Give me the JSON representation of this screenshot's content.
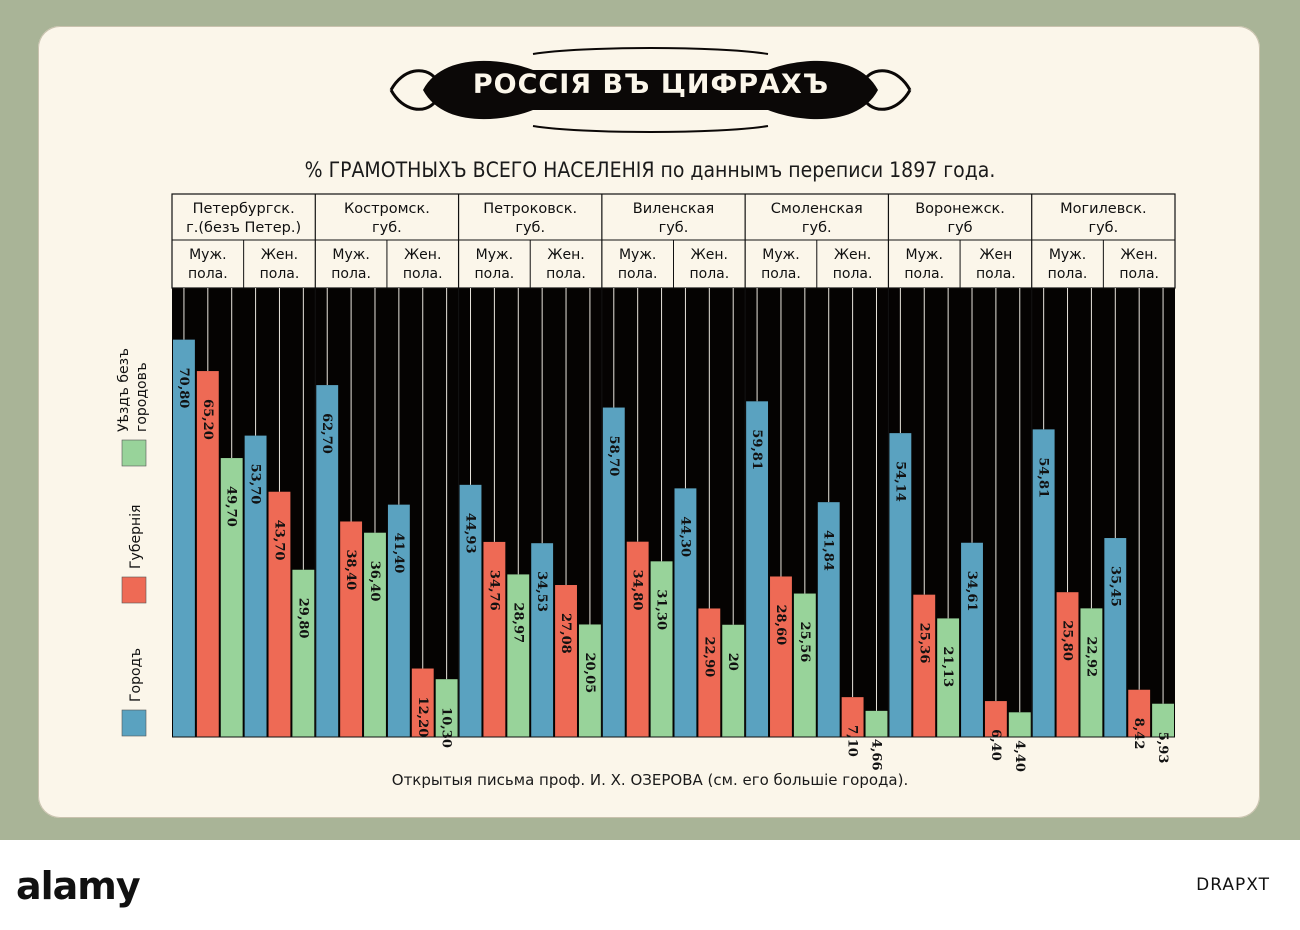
{
  "card": {
    "bg": "#fbf6ea"
  },
  "title": "РОССIЯ ВЪ ЦИФРАХЪ",
  "subtitle": "% ГРАМОТНЫХЪ ВСЕГО НАСЕЛЕНIЯ по даннымъ переписи 1897 года.",
  "footer": "Открытыя письма проф. И. Х. ОЗЕРОВА (см. его большiе города).",
  "watermark": {
    "logo": "alamy",
    "stock_id": "DRAPXT"
  },
  "chart_data": {
    "type": "bar",
    "regions": [
      {
        "name": "Петербургск. г.(безъ Петер.)",
        "groups": [
          {
            "label": "Муж. пола.",
            "values": [
              70.8,
              65.2,
              49.7
            ],
            "labels": [
              "70,80",
              "65,20",
              "49,70"
            ]
          },
          {
            "label": "Жен. пола.",
            "values": [
              53.7,
              43.7,
              29.8
            ],
            "labels": [
              "53,70",
              "43,70",
              "29,80"
            ]
          }
        ]
      },
      {
        "name": "Костромск. губ.",
        "groups": [
          {
            "label": "Муж. пола.",
            "values": [
              62.7,
              38.4,
              36.4
            ],
            "labels": [
              "62,70",
              "38,40",
              "36,40"
            ]
          },
          {
            "label": "Жен. пола.",
            "values": [
              41.4,
              12.2,
              10.3
            ],
            "labels": [
              "41,40",
              "12,20",
              "10,30"
            ]
          }
        ]
      },
      {
        "name": "Петроковск. губ.",
        "groups": [
          {
            "label": "Муж. пола.",
            "values": [
              44.93,
              34.76,
              28.97
            ],
            "labels": [
              "44,93",
              "34,76",
              "28,97"
            ]
          },
          {
            "label": "Жен. пола.",
            "values": [
              34.53,
              27.08,
              20.05
            ],
            "labels": [
              "34,53",
              "27,08",
              "20,05"
            ]
          }
        ]
      },
      {
        "name": "Виленская губ.",
        "groups": [
          {
            "label": "Муж. пола.",
            "values": [
              58.7,
              34.8,
              31.3
            ],
            "labels": [
              "58,70",
              "34,80",
              "31,30"
            ]
          },
          {
            "label": "Жен. пола.",
            "values": [
              44.3,
              22.9,
              20
            ],
            "labels": [
              "44,30",
              "22,90",
              "20"
            ]
          }
        ]
      },
      {
        "name": "Смоленская губ.",
        "groups": [
          {
            "label": "Муж. пола.",
            "values": [
              59.81,
              28.6,
              25.56
            ],
            "labels": [
              "59,81",
              "28,60",
              "25,56"
            ]
          },
          {
            "label": "Жен. пола.",
            "values": [
              41.84,
              7.1,
              4.66
            ],
            "labels": [
              "41,84",
              "7,10",
              "4,66"
            ]
          }
        ]
      },
      {
        "name": "Воронежск. губ",
        "groups": [
          {
            "label": "Муж. пола.",
            "values": [
              54.14,
              25.36,
              21.13
            ],
            "labels": [
              "54,14",
              "25,36",
              "21,13"
            ]
          },
          {
            "label": "Жен пола.",
            "values": [
              34.61,
              6.4,
              4.4
            ],
            "labels": [
              "34,61",
              "6,40",
              "4,40"
            ]
          }
        ]
      },
      {
        "name": "Могилевск. губ.",
        "groups": [
          {
            "label": "Муж. пола.",
            "values": [
              54.81,
              25.8,
              22.92
            ],
            "labels": [
              "54,81",
              "25,80",
              "22,92"
            ]
          },
          {
            "label": "Жен. пола.",
            "values": [
              35.45,
              8.42,
              5.93
            ],
            "labels": [
              "35,45",
              "8,42",
              "5,93"
            ]
          }
        ]
      }
    ],
    "series": [
      {
        "name": "Городъ",
        "color": "#5aa2c0"
      },
      {
        "name": "Губернiя",
        "color": "#ee6a55"
      },
      {
        "name": "Уѣздъ безъ городовъ",
        "color": "#98d39a"
      }
    ],
    "ylim": [
      0,
      80
    ],
    "legend_position": "left",
    "background": "#050302"
  }
}
